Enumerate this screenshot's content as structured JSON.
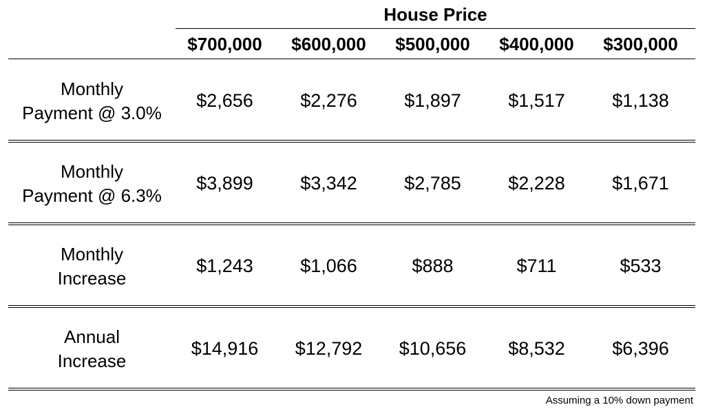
{
  "table": {
    "super_header": "House Price",
    "columns": [
      "$700,000",
      "$600,000",
      "$500,000",
      "$400,000",
      "$300,000"
    ],
    "rows": [
      {
        "label_line1": "Monthly",
        "label_line2": "Payment @ 3.0%",
        "values": [
          "$2,656",
          "$2,276",
          "$1,897",
          "$1,517",
          "$1,138"
        ]
      },
      {
        "label_line1": "Monthly",
        "label_line2": "Payment @ 6.3%",
        "values": [
          "$3,899",
          "$3,342",
          "$2,785",
          "$2,228",
          "$1,671"
        ]
      },
      {
        "label_line1": "Monthly",
        "label_line2": "Increase",
        "values": [
          "$1,243",
          "$1,066",
          "$888",
          "$711",
          "$533"
        ]
      },
      {
        "label_line1": "Annual",
        "label_line2": "Increase",
        "values": [
          "$14,916",
          "$12,792",
          "$10,656",
          "$8,532",
          "$6,396"
        ]
      }
    ],
    "footnote": "Assuming a 10% down payment"
  },
  "chart_data": {
    "type": "table",
    "title": "",
    "column_group_header": "House Price",
    "columns": [
      "$700,000",
      "$600,000",
      "$500,000",
      "$400,000",
      "$300,000"
    ],
    "rows": [
      {
        "label": "Monthly Payment @ 3.0%",
        "values": [
          2656,
          2276,
          1897,
          1517,
          1138
        ]
      },
      {
        "label": "Monthly Payment @ 6.3%",
        "values": [
          3899,
          3342,
          2785,
          2228,
          1671
        ]
      },
      {
        "label": "Monthly Increase",
        "values": [
          1243,
          1066,
          888,
          711,
          533
        ]
      },
      {
        "label": "Annual Increase",
        "values": [
          14916,
          12792,
          10656,
          8532,
          6396
        ]
      }
    ],
    "footnote": "Assuming a 10% down payment"
  }
}
